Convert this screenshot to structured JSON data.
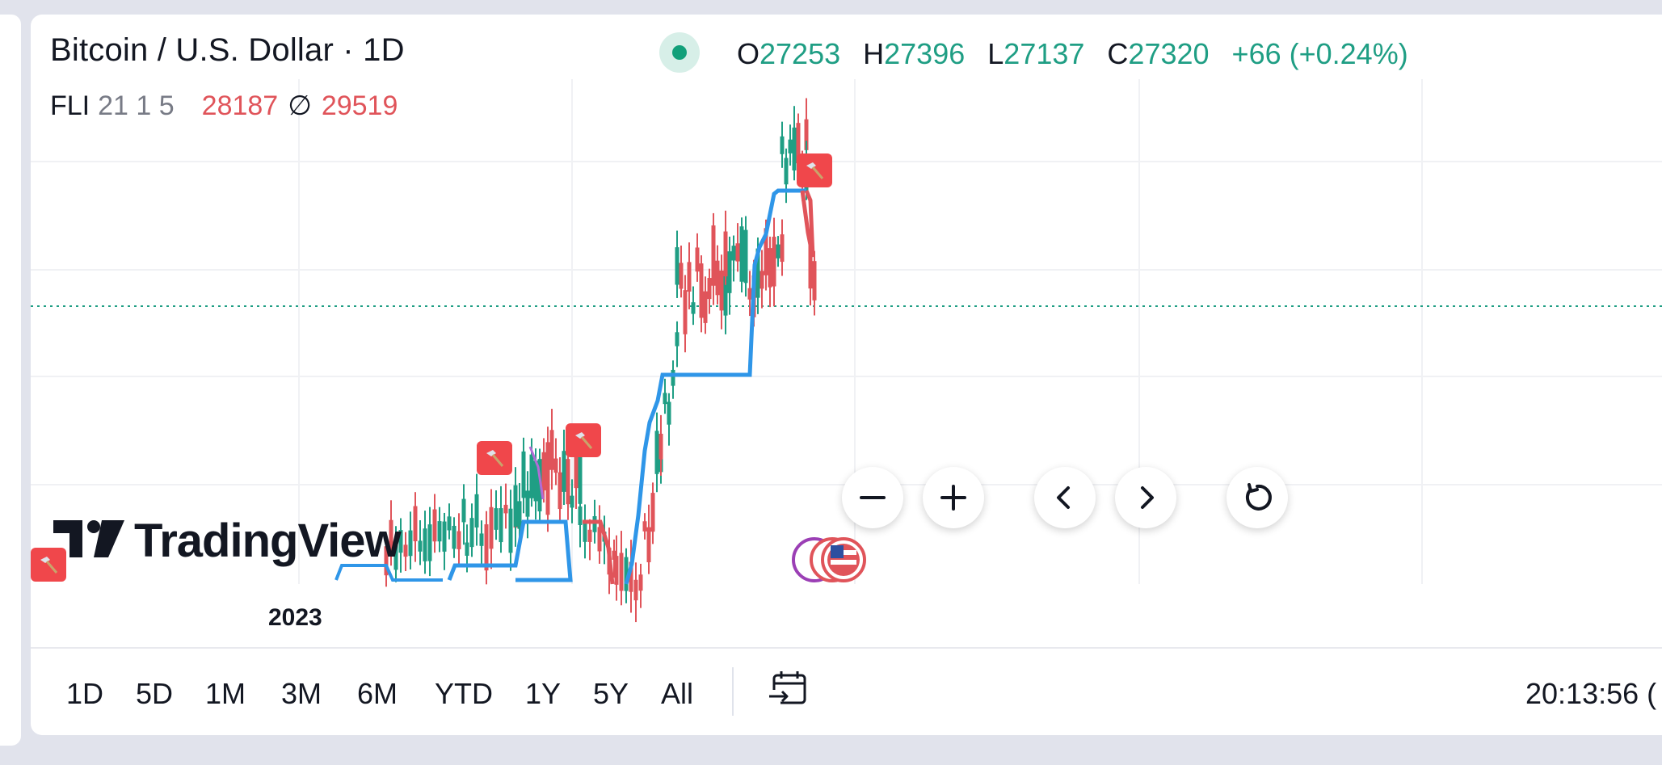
{
  "header": {
    "title": "Bitcoin / U.S. Dollar · 1D",
    "ohlc": {
      "o_label": "O",
      "o_value": "27253",
      "h_label": "H",
      "h_value": "27396",
      "l_label": "L",
      "l_value": "27137",
      "c_label": "C",
      "c_value": "27320",
      "change": "+66 (+0.24%)"
    },
    "market_status_color": "#12a07a"
  },
  "indicator": {
    "name": "FLI",
    "params": "21 1 5",
    "value1": "28187",
    "symbol": "∅",
    "value2": "29519"
  },
  "chart": {
    "last_price_line_color": "#1f9e84",
    "up_color": "#1f9e84",
    "down_color": "#e0545a",
    "indicator_line_color": "#2f96e8",
    "indicator_down_color": "#e0545a",
    "signal_badge_icon": "hammer-icon",
    "signal_badge_color": "#f0474b",
    "x_axis_label": "2023"
  },
  "watermark": {
    "text": "TradingView"
  },
  "nav": {
    "zoom_out_icon": "minus-icon",
    "zoom_in_icon": "plus-icon",
    "scroll_left_icon": "chevron-left-icon",
    "scroll_right_icon": "chevron-right-icon",
    "reset_icon": "reset-icon"
  },
  "ranges": [
    "1D",
    "5D",
    "1M",
    "3M",
    "6M",
    "YTD",
    "1Y",
    "5Y",
    "All"
  ],
  "goto_icon": "calendar-goto-icon",
  "clock": "20:13:56 ("
}
